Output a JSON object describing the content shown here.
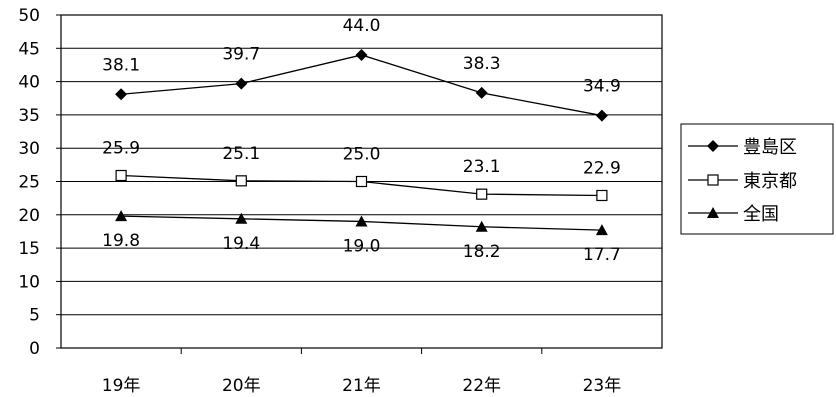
{
  "chart_data": {
    "type": "line",
    "categories": [
      "19年",
      "20年",
      "21年",
      "22年",
      "23年"
    ],
    "ylim": [
      0,
      50
    ],
    "yticks": [
      0,
      5,
      10,
      15,
      20,
      25,
      30,
      35,
      40,
      45,
      50
    ],
    "ytick_labels": [
      "0",
      "5",
      "10",
      "15",
      "20",
      "25",
      "30",
      "35",
      "40",
      "45",
      "50"
    ],
    "grid": true,
    "legend_position": "right",
    "series": [
      {
        "name": "豊島区",
        "marker": "diamond",
        "color": "#000000",
        "values": [
          38.1,
          39.7,
          44.0,
          38.3,
          34.9
        ],
        "labels": [
          "38.1",
          "39.7",
          "44.0",
          "38.3",
          "34.9"
        ]
      },
      {
        "name": "東京都",
        "marker": "square-open",
        "color": "#000000",
        "values": [
          25.9,
          25.1,
          25.0,
          23.1,
          22.9
        ],
        "labels": [
          "25.9",
          "25.1",
          "25.0",
          "23.1",
          "22.9"
        ]
      },
      {
        "name": "全国",
        "marker": "triangle",
        "color": "#000000",
        "values": [
          19.8,
          19.4,
          19.0,
          18.2,
          17.7
        ],
        "labels": [
          "19.8",
          "19.4",
          "19.0",
          "18.2",
          "17.7"
        ]
      }
    ]
  }
}
